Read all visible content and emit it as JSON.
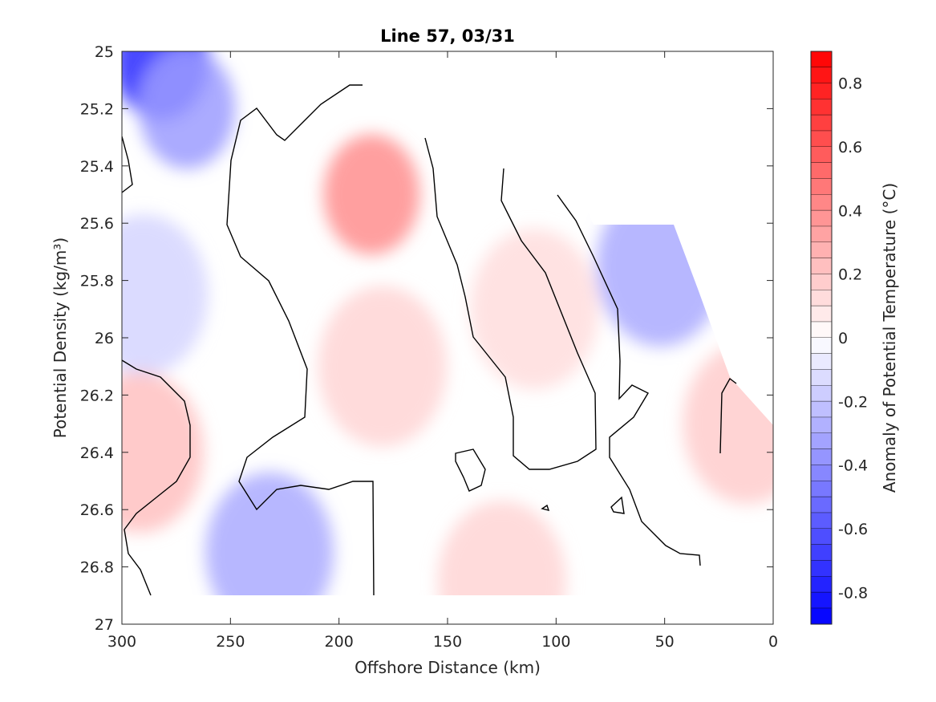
{
  "chart_data": {
    "type": "heatmap",
    "title": "Line 57, 03/31",
    "xlabel": "Offshore Distance (km)",
    "ylabel": "Potential Density (kg/m³)",
    "colorbar_label": "Anomaly of Potential Temperature (°C)",
    "xlim": [
      300,
      0
    ],
    "ylim": [
      27,
      25
    ],
    "x_ticks": [
      "300",
      "250",
      "200",
      "150",
      "100",
      "50",
      "0"
    ],
    "y_ticks": [
      "25",
      "25.2",
      "25.4",
      "25.6",
      "25.8",
      "26",
      "26.2",
      "26.4",
      "26.6",
      "26.8",
      "27"
    ],
    "colorbar_range": [
      -0.9,
      0.9
    ],
    "colorbar_ticks": [
      "0.8",
      "0.6",
      "0.4",
      "0.2",
      "0",
      "-0.2",
      "-0.4",
      "-0.6",
      "-0.8"
    ],
    "colormap": [
      "#0000ff",
      "#ffffff",
      "#ff0000"
    ],
    "zero_contour": true,
    "features": [
      {
        "x": 282,
        "y": 25.03,
        "value": -0.75
      },
      {
        "x": 270,
        "y": 25.2,
        "value": -0.35
      },
      {
        "x": 290,
        "y": 25.85,
        "value": -0.15
      },
      {
        "x": 185,
        "y": 25.5,
        "value": 0.4
      },
      {
        "x": 180,
        "y": 26.1,
        "value": 0.15
      },
      {
        "x": 232,
        "y": 26.75,
        "value": -0.3
      },
      {
        "x": 52,
        "y": 25.75,
        "value": -0.3
      },
      {
        "x": 292,
        "y": 26.4,
        "value": 0.22
      },
      {
        "x": 110,
        "y": 25.9,
        "value": 0.12
      },
      {
        "x": 125,
        "y": 26.85,
        "value": 0.15
      },
      {
        "x": 12,
        "y": 26.3,
        "value": 0.18
      }
    ]
  }
}
